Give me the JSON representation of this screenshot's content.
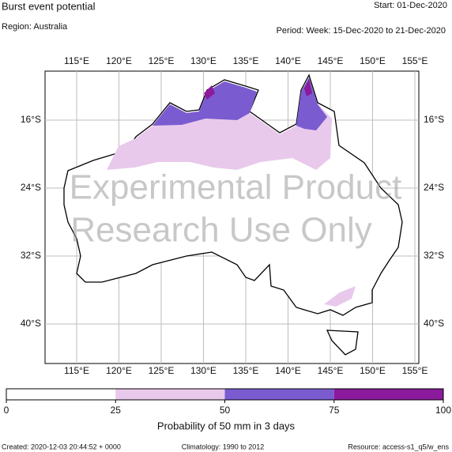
{
  "header": {
    "title": "Burst event potential",
    "start": "Start: 01-Dec-2020",
    "region": "Region: Australia",
    "period": "Period: Week: 15-Dec-2020 to 21-Dec-2020"
  },
  "map": {
    "lon_ticks": [
      "115°E",
      "120°E",
      "125°E",
      "130°E",
      "135°E",
      "140°E",
      "145°E",
      "150°E",
      "155°E"
    ],
    "lat_ticks": [
      "16°S",
      "24°S",
      "32°S",
      "40°S"
    ],
    "watermark": [
      "Experimental Product",
      "Research Use Only"
    ]
  },
  "legend": {
    "ticks": [
      0,
      25,
      50,
      75,
      100
    ],
    "colors": [
      "#ffffff",
      "#e8c9ec",
      "#7b5bd0",
      "#8b1a9c"
    ],
    "label": "Probability of 50 mm in 3 days"
  },
  "footer": {
    "created": "Created: 2020-12-03 20:44:52 + 0000",
    "climatology": "Climatology: 1990 to 2012",
    "resource": "Resource: access-s1_q5/w_ens"
  }
}
